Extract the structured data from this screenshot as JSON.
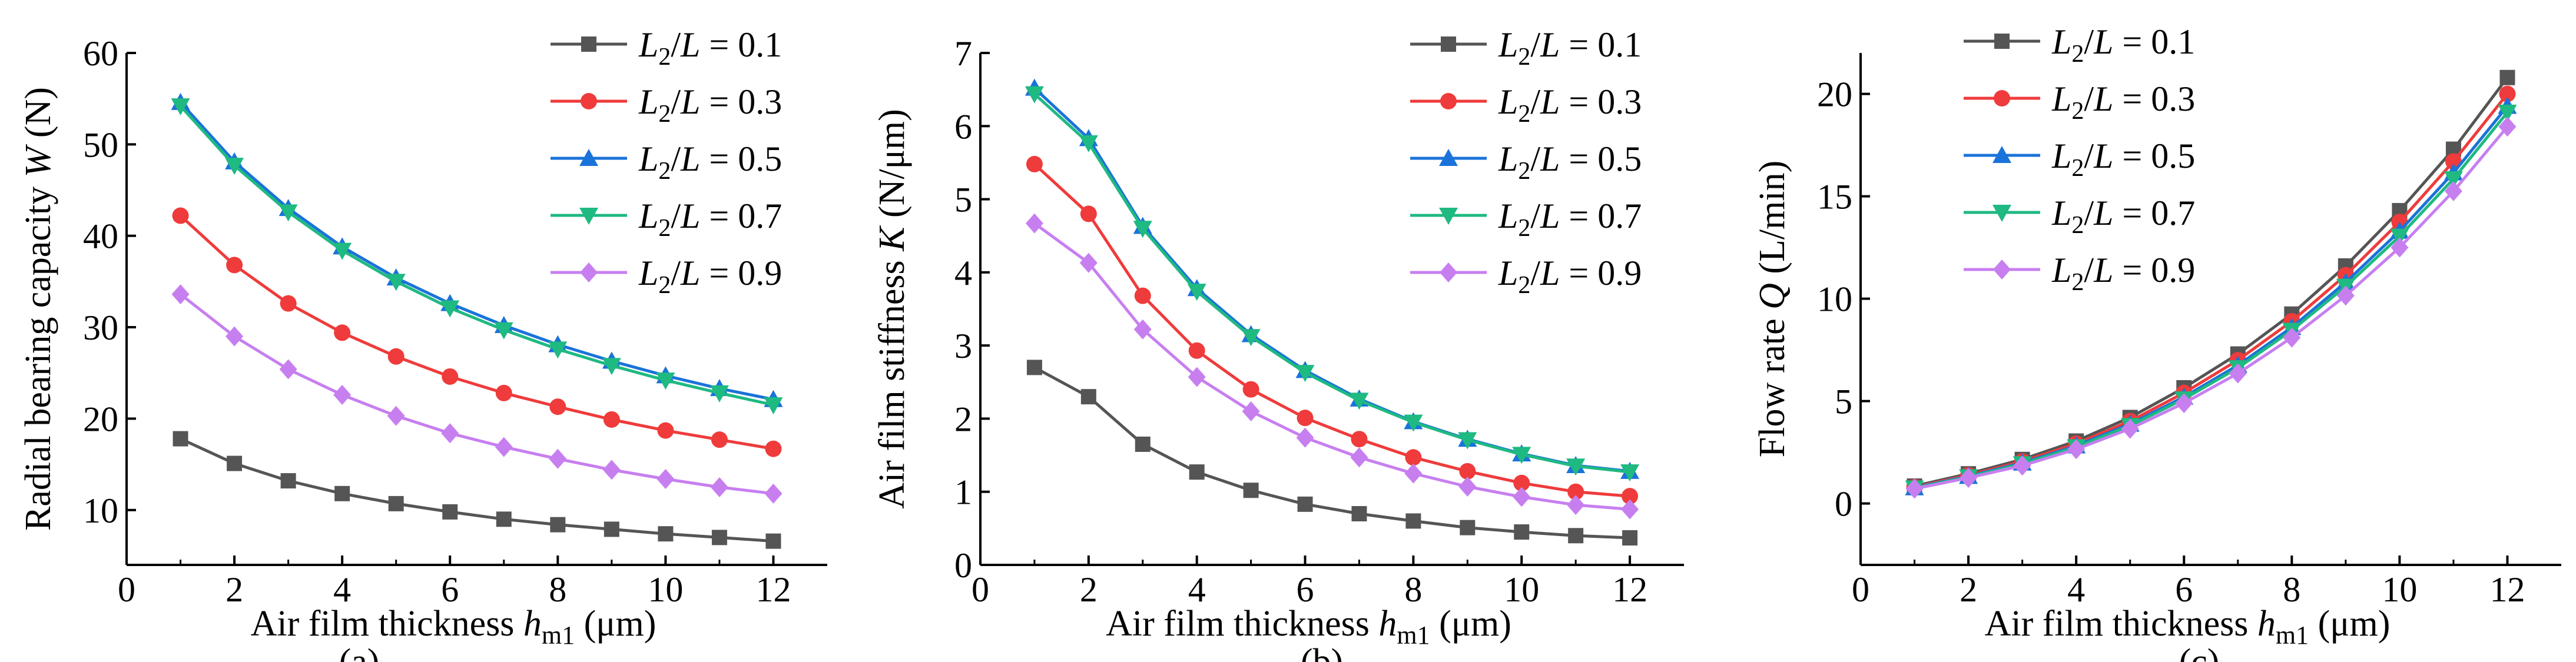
{
  "legend_labels": [
    {
      "var": "L",
      "sub": "2",
      "tail": "/L = 0.1"
    },
    {
      "var": "L",
      "sub": "2",
      "tail": "/L = 0.3"
    },
    {
      "var": "L",
      "sub": "2",
      "tail": "/L = 0.5"
    },
    {
      "var": "L",
      "sub": "2",
      "tail": "/L = 0.7"
    },
    {
      "var": "L",
      "sub": "2",
      "tail": "/L = 0.9"
    }
  ],
  "series_colors": [
    "#555555",
    "#ef3b3b",
    "#1a73d9",
    "#1fb982",
    "#c77ff0"
  ],
  "series_markers": [
    "square",
    "circle",
    "triangle-up",
    "triangle-down",
    "diamond"
  ],
  "chart_data": [
    {
      "type": "line",
      "caption": "(a)",
      "ylabel": {
        "pre": "Radial bearing capacity ",
        "var": "W",
        "post": " (N)"
      },
      "xlabel": {
        "pre": "Air film thickness ",
        "var": "h",
        "sub": "m1",
        "post": " (μm)"
      },
      "xlim": [
        0,
        13
      ],
      "ylim": [
        4,
        60
      ],
      "xticks": [
        0,
        2,
        4,
        6,
        8,
        10,
        12
      ],
      "yticks": [
        10,
        20,
        30,
        40,
        50,
        60
      ],
      "x": [
        1,
        2,
        3,
        4,
        5,
        6,
        7,
        8,
        9,
        10,
        11,
        12
      ],
      "series": [
        {
          "name": "L2/L = 0.1",
          "values": [
            17.8,
            15.1,
            13.2,
            11.8,
            10.7,
            9.8,
            9.0,
            8.4,
            7.9,
            7.4,
            7.0,
            6.6
          ]
        },
        {
          "name": "L2/L = 0.3",
          "values": [
            42.2,
            36.8,
            32.6,
            29.4,
            26.8,
            24.6,
            22.8,
            21.3,
            19.9,
            18.7,
            17.7,
            16.7
          ]
        },
        {
          "name": "L2/L = 0.5",
          "values": [
            54.6,
            48.1,
            43.0,
            38.8,
            35.4,
            32.6,
            30.2,
            28.1,
            26.3,
            24.7,
            23.3,
            22.1
          ]
        },
        {
          "name": "L2/L = 0.7",
          "values": [
            54.2,
            47.7,
            42.6,
            38.4,
            35.0,
            32.1,
            29.7,
            27.6,
            25.8,
            24.2,
            22.8,
            21.5
          ]
        },
        {
          "name": "L2/L = 0.9",
          "values": [
            33.6,
            29.0,
            25.4,
            22.6,
            20.3,
            18.4,
            16.9,
            15.6,
            14.4,
            13.4,
            12.5,
            11.8
          ]
        }
      ]
    },
    {
      "type": "line",
      "caption": "(b)",
      "ylabel": {
        "pre": "Air film stiffness ",
        "var": "K",
        "post": " (N/μm)"
      },
      "xlabel": {
        "pre": "Air film thickness ",
        "var": "h",
        "sub": "m1",
        "post": " (μm)"
      },
      "xlim": [
        0,
        13
      ],
      "ylim": [
        0,
        7
      ],
      "xticks": [
        0,
        2,
        4,
        6,
        8,
        10,
        12
      ],
      "yticks": [
        0,
        1,
        2,
        3,
        4,
        5,
        6,
        7
      ],
      "x": [
        1,
        2,
        3,
        4,
        5,
        6,
        7,
        8,
        9,
        10,
        11,
        12
      ],
      "series": [
        {
          "name": "L2/L = 0.1",
          "values": [
            2.7,
            2.3,
            1.65,
            1.27,
            1.02,
            0.83,
            0.7,
            0.6,
            0.51,
            0.45,
            0.4,
            0.37
          ]
        },
        {
          "name": "L2/L = 0.3",
          "values": [
            5.48,
            4.8,
            3.68,
            2.93,
            2.4,
            2.01,
            1.72,
            1.47,
            1.28,
            1.12,
            1.0,
            0.94
          ]
        },
        {
          "name": "L2/L = 0.5",
          "values": [
            6.52,
            5.83,
            4.63,
            3.78,
            3.15,
            2.66,
            2.27,
            1.96,
            1.72,
            1.52,
            1.36,
            1.28
          ]
        },
        {
          "name": "L2/L = 0.7",
          "values": [
            6.44,
            5.77,
            4.6,
            3.74,
            3.12,
            2.63,
            2.25,
            1.95,
            1.71,
            1.51,
            1.35,
            1.27
          ]
        },
        {
          "name": "L2/L = 0.9",
          "values": [
            4.67,
            4.13,
            3.22,
            2.57,
            2.1,
            1.74,
            1.47,
            1.25,
            1.07,
            0.93,
            0.82,
            0.76
          ]
        }
      ]
    },
    {
      "type": "line",
      "caption": "(c)",
      "ylabel": {
        "pre": "Flow rate ",
        "var": "Q",
        "post": " (L/min)"
      },
      "xlabel": {
        "pre": "Air film thickness ",
        "var": "h",
        "sub": "m1",
        "post": " (μm)"
      },
      "xlim": [
        0,
        13
      ],
      "ylim": [
        -3,
        22
      ],
      "xticks": [
        0,
        2,
        4,
        6,
        8,
        10,
        12
      ],
      "yticks": [
        0,
        5,
        10,
        15,
        20
      ],
      "x": [
        1,
        2,
        3,
        4,
        5,
        6,
        7,
        8,
        9,
        10,
        11,
        12
      ],
      "series": [
        {
          "name": "L2/L = 0.1",
          "values": [
            0.85,
            1.45,
            2.15,
            3.05,
            4.2,
            5.65,
            7.3,
            9.25,
            11.6,
            14.3,
            17.3,
            20.8
          ]
        },
        {
          "name": "L2/L = 0.3",
          "values": [
            0.8,
            1.38,
            2.05,
            2.92,
            4.02,
            5.4,
            7.0,
            8.9,
            11.15,
            13.75,
            16.7,
            20.0
          ]
        },
        {
          "name": "L2/L = 0.5",
          "values": [
            0.77,
            1.33,
            1.98,
            2.82,
            3.88,
            5.2,
            6.75,
            8.6,
            10.8,
            13.3,
            16.15,
            19.4
          ]
        },
        {
          "name": "L2/L = 0.7",
          "values": [
            0.75,
            1.3,
            1.93,
            2.76,
            3.8,
            5.1,
            6.62,
            8.45,
            10.6,
            13.05,
            15.85,
            19.1
          ]
        },
        {
          "name": "L2/L = 0.9",
          "values": [
            0.72,
            1.25,
            1.85,
            2.65,
            3.65,
            4.9,
            6.35,
            8.1,
            10.15,
            12.5,
            15.25,
            18.4
          ]
        }
      ]
    }
  ]
}
